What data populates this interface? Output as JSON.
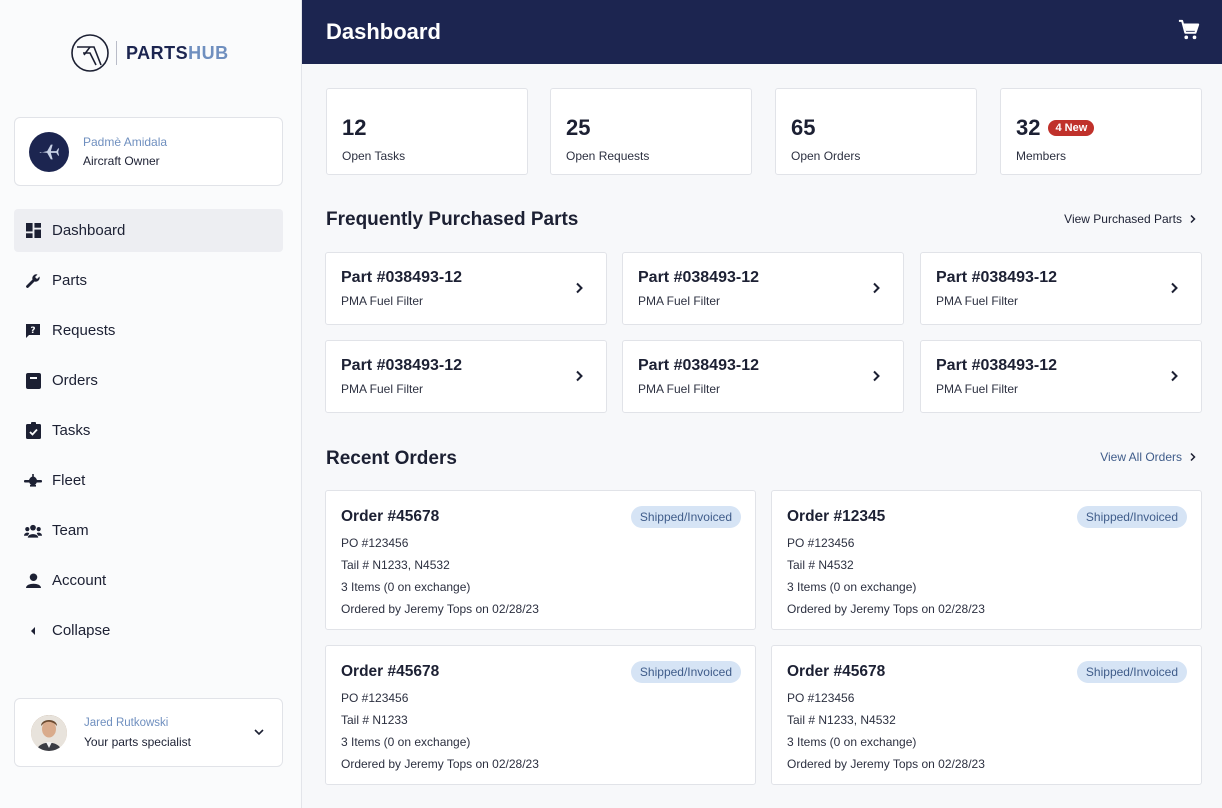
{
  "brand": {
    "name_part1": "PARTS",
    "name_part2": "HUB"
  },
  "owner": {
    "name": "Padmè Amidala",
    "role": "Aircraft Owner"
  },
  "nav": [
    {
      "label": "Dashboard",
      "icon": "dashboard-icon",
      "active": true
    },
    {
      "label": "Parts",
      "icon": "wrench-icon"
    },
    {
      "label": "Requests",
      "icon": "question-chat-icon"
    },
    {
      "label": "Orders",
      "icon": "archive-box-icon"
    },
    {
      "label": "Tasks",
      "icon": "clipboard-check-icon"
    },
    {
      "label": "Fleet",
      "icon": "aircraft-icon"
    },
    {
      "label": "Team",
      "icon": "group-icon"
    },
    {
      "label": "Account",
      "icon": "person-icon"
    },
    {
      "label": "Collapse",
      "icon": "caret-left-icon"
    }
  ],
  "specialist": {
    "name": "Jared Rutkowski",
    "role": "Your parts specialist"
  },
  "header": {
    "title": "Dashboard"
  },
  "stats": [
    {
      "value": "12",
      "label": "Open Tasks"
    },
    {
      "value": "25",
      "label": "Open Requests"
    },
    {
      "value": "65",
      "label": "Open Orders"
    },
    {
      "value": "32",
      "label": "Members",
      "badge": "4 New"
    }
  ],
  "parts_section": {
    "title": "Frequently Purchased Parts",
    "link": "View Purchased Parts"
  },
  "parts": [
    {
      "title": "Part #038493-12",
      "sub": "PMA Fuel Filter"
    },
    {
      "title": "Part #038493-12",
      "sub": "PMA Fuel Filter"
    },
    {
      "title": "Part #038493-12",
      "sub": "PMA Fuel Filter"
    },
    {
      "title": "Part #038493-12",
      "sub": "PMA Fuel Filter"
    },
    {
      "title": "Part #038493-12",
      "sub": "PMA Fuel Filter"
    },
    {
      "title": "Part #038493-12",
      "sub": "PMA Fuel Filter"
    }
  ],
  "orders_section": {
    "title": "Recent Orders",
    "link": "View All Orders"
  },
  "orders": [
    {
      "title": "Order #45678",
      "status": "Shipped/Invoiced",
      "po": "PO #123456",
      "tail": "Tail # N1233, N4532",
      "items": "3 Items (0 on exchange)",
      "ordered_by": "Ordered by Jeremy Tops on 02/28/23"
    },
    {
      "title": "Order #12345",
      "status": "Shipped/Invoiced",
      "po": "PO #123456",
      "tail": "Tail # N4532",
      "items": "3 Items (0 on exchange)",
      "ordered_by": "Ordered by Jeremy Tops on 02/28/23"
    },
    {
      "title": "Order #45678",
      "status": "Shipped/Invoiced",
      "po": "PO #123456",
      "tail": "Tail # N1233",
      "items": "3 Items (0 on exchange)",
      "ordered_by": "Ordered by Jeremy Tops on 02/28/23"
    },
    {
      "title": "Order #45678",
      "status": "Shipped/Invoiced",
      "po": "PO #123456",
      "tail": "Tail # N1233, N4532",
      "items": "3 Items (0 on exchange)",
      "ordered_by": "Ordered by Jeremy Tops on 02/28/23"
    }
  ],
  "colors": {
    "navy": "#1c2550",
    "accent_blue": "#6f8fbf",
    "badge_red": "#c0312b",
    "status_pill_bg": "#d6e4f5"
  }
}
